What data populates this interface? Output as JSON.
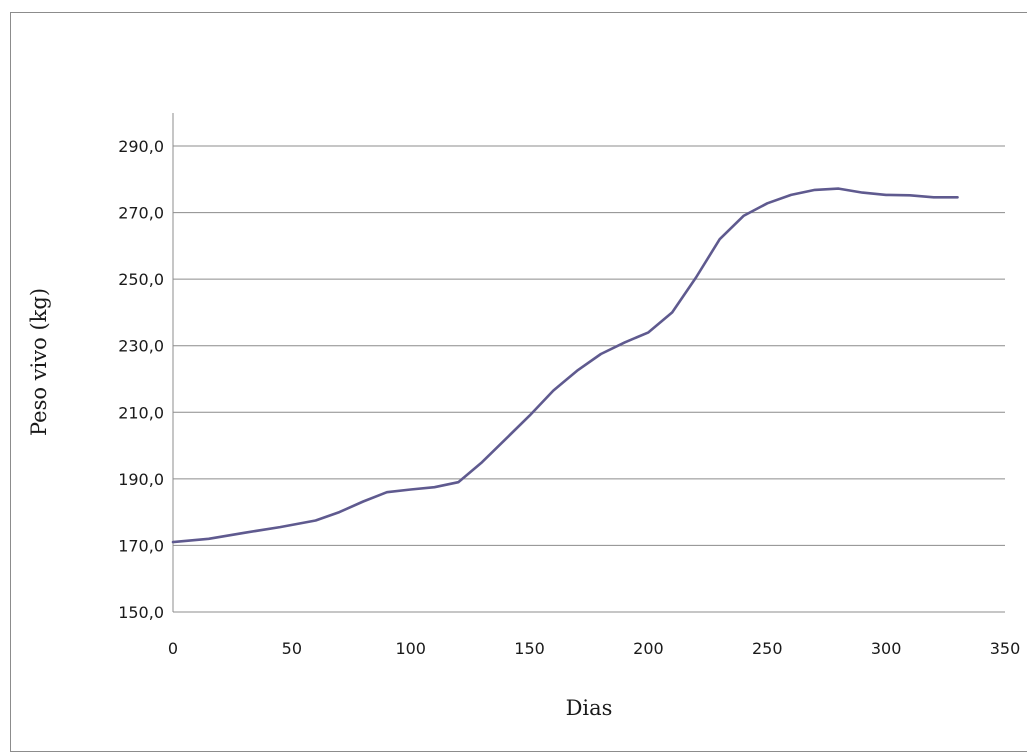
{
  "chart_data": {
    "type": "line",
    "title": "",
    "xlabel": "Dias",
    "ylabel": "Peso vivo (kg)",
    "xlim": [
      0,
      350
    ],
    "ylim": [
      150,
      290
    ],
    "xticks": [
      0,
      50,
      100,
      150,
      200,
      250,
      300,
      350
    ],
    "yticks": [
      150,
      170,
      190,
      210,
      230,
      250,
      270,
      290
    ],
    "xtick_labels": [
      "0",
      "50",
      "100",
      "150",
      "200",
      "250",
      "300",
      "350"
    ],
    "ytick_labels": [
      "150,0",
      "170,0",
      "190,0",
      "210,0",
      "230,0",
      "250,0",
      "270,0",
      "290,0"
    ],
    "grid": "horizontal",
    "legend": "none",
    "series": [
      {
        "color": "#5f5a8f",
        "x": [
          0,
          15,
          30,
          45,
          60,
          70,
          80,
          90,
          100,
          110,
          120,
          130,
          140,
          150,
          160,
          170,
          180,
          190,
          200,
          210,
          220,
          230,
          240,
          250,
          260,
          270,
          280,
          290,
          300,
          310,
          320,
          330
        ],
        "y": [
          171.0,
          172.0,
          173.8,
          175.5,
          177.5,
          180.0,
          183.2,
          186.0,
          186.8,
          187.5,
          189.0,
          195.0,
          202.0,
          209.0,
          216.5,
          222.5,
          227.5,
          231.0,
          234.0,
          240.0,
          250.5,
          262.0,
          269.0,
          272.8,
          275.3,
          276.8,
          277.2,
          276.0,
          275.3,
          275.2,
          274.6,
          274.6
        ]
      }
    ]
  }
}
